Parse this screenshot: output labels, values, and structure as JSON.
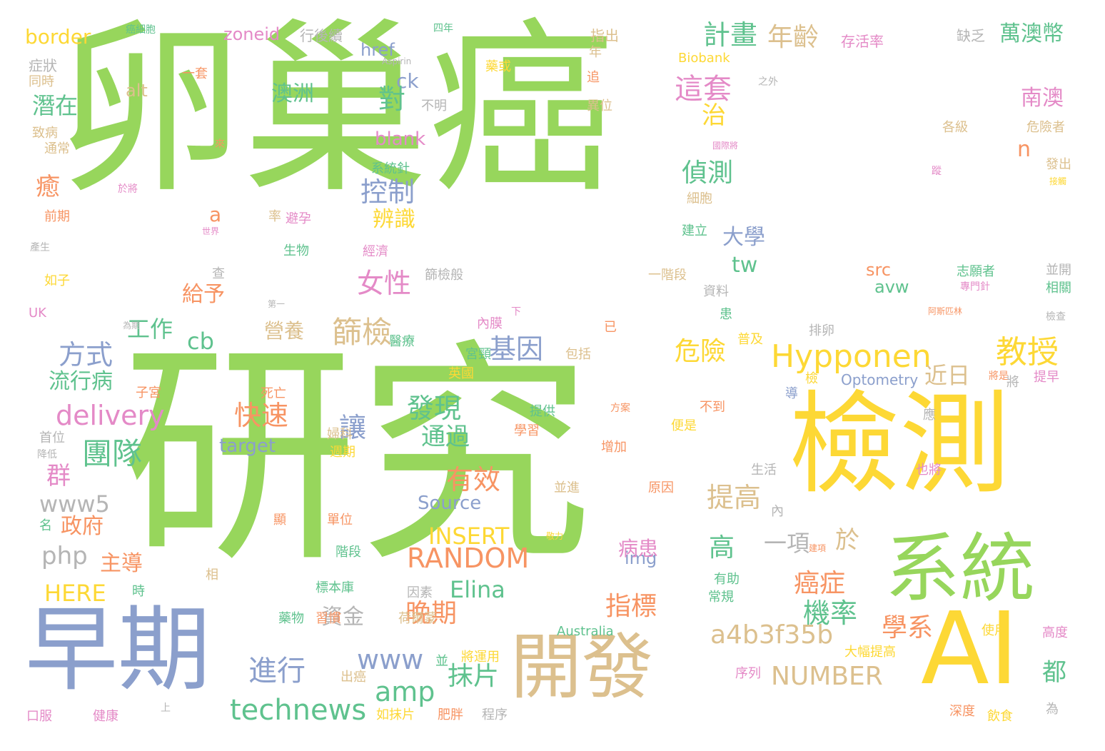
{
  "palette": {
    "green": "#97d65c",
    "yellow": "#fdd835",
    "tan": "#dcc08e",
    "slate": "#8b9fcc",
    "orange": "#f79463",
    "teal": "#5fc28e",
    "pink": "#e48ac7",
    "grey": "#b5b5b5"
  },
  "words": [
    {
      "text": "研究"
    },
    {
      "text": "卵巢癌"
    },
    {
      "text": "檢測"
    },
    {
      "text": "AI"
    },
    {
      "text": "系統"
    },
    {
      "text": "早期"
    },
    {
      "text": "開發"
    },
    {
      "text": "Hypponen"
    },
    {
      "text": "教授"
    },
    {
      "text": "technews"
    },
    {
      "text": "delivery"
    },
    {
      "text": "RANDOM"
    },
    {
      "text": "NUMBER"
    },
    {
      "text": "a4b3f35b"
    },
    {
      "text": "INSERT"
    },
    {
      "text": "HERE"
    },
    {
      "text": "www5"
    },
    {
      "text": "amp"
    },
    {
      "text": "www"
    },
    {
      "text": "Elina"
    },
    {
      "text": "Source"
    },
    {
      "text": "php"
    },
    {
      "text": "border"
    },
    {
      "text": "zoneid"
    },
    {
      "text": "href"
    },
    {
      "text": "blank"
    },
    {
      "text": "target"
    },
    {
      "text": "Optometry"
    },
    {
      "text": "Australia"
    },
    {
      "text": "Biobank"
    },
    {
      "text": "Aspirin"
    },
    {
      "text": "UK"
    },
    {
      "text": "cb"
    },
    {
      "text": "ck"
    },
    {
      "text": "alt"
    },
    {
      "text": "src"
    },
    {
      "text": "avw"
    },
    {
      "text": "img"
    },
    {
      "text": "tw"
    },
    {
      "text": "n"
    },
    {
      "text": "a"
    },
    {
      "text": "篩檢"
    },
    {
      "text": "團隊"
    },
    {
      "text": "方式"
    },
    {
      "text": "女性"
    },
    {
      "text": "控制"
    },
    {
      "text": "基因"
    },
    {
      "text": "危險"
    },
    {
      "text": "進行"
    },
    {
      "text": "抹片"
    },
    {
      "text": "晚期"
    },
    {
      "text": "機率"
    },
    {
      "text": "指標"
    },
    {
      "text": "計畫"
    },
    {
      "text": "年齡"
    },
    {
      "text": "這套"
    },
    {
      "text": "萬澳幣"
    },
    {
      "text": "南澳"
    },
    {
      "text": "偵測"
    },
    {
      "text": "發現"
    },
    {
      "text": "快速"
    },
    {
      "text": "有效"
    },
    {
      "text": "通過"
    },
    {
      "text": "提高"
    },
    {
      "text": "癌症"
    },
    {
      "text": "病患"
    },
    {
      "text": "學系"
    },
    {
      "text": "近日"
    },
    {
      "text": "大學"
    },
    {
      "text": "辨識"
    },
    {
      "text": "澳洲"
    },
    {
      "text": "潛在"
    },
    {
      "text": "營養"
    },
    {
      "text": "流行病"
    },
    {
      "text": "工作"
    },
    {
      "text": "給予"
    },
    {
      "text": "政府"
    },
    {
      "text": "主導"
    },
    {
      "text": "資金"
    },
    {
      "text": "一項"
    },
    {
      "text": "讓"
    },
    {
      "text": "對"
    },
    {
      "text": "治"
    },
    {
      "text": "癒"
    },
    {
      "text": "群"
    },
    {
      "text": "高"
    },
    {
      "text": "於"
    },
    {
      "text": "都"
    },
    {
      "text": "存活率"
    },
    {
      "text": "行後續"
    },
    {
      "text": "缺乏"
    },
    {
      "text": "指出"
    },
    {
      "text": "症狀"
    },
    {
      "text": "同時"
    },
    {
      "text": "致病"
    },
    {
      "text": "通常"
    },
    {
      "text": "前期"
    },
    {
      "text": "如子"
    },
    {
      "text": "一套"
    },
    {
      "text": "生物"
    },
    {
      "text": "避孕"
    },
    {
      "text": "經濟"
    },
    {
      "text": "系統針"
    },
    {
      "text": "不明"
    },
    {
      "text": "異位"
    },
    {
      "text": "細胞"
    },
    {
      "text": "建立"
    },
    {
      "text": "一階段"
    },
    {
      "text": "資料"
    },
    {
      "text": "志願者"
    },
    {
      "text": "專門針"
    },
    {
      "text": "相關"
    },
    {
      "text": "並開"
    },
    {
      "text": "危險者"
    },
    {
      "text": "發出"
    },
    {
      "text": "各級"
    },
    {
      "text": "國際將"
    },
    {
      "text": "篩檢般"
    },
    {
      "text": "第一"
    },
    {
      "text": "醫療"
    },
    {
      "text": "內膜"
    },
    {
      "text": "包括"
    },
    {
      "text": "宮頸"
    },
    {
      "text": "英國"
    },
    {
      "text": "子宮"
    },
    {
      "text": "死亡"
    },
    {
      "text": "婦科"
    },
    {
      "text": "週期"
    },
    {
      "text": "首位"
    },
    {
      "text": "降低"
    },
    {
      "text": "學習"
    },
    {
      "text": "提供"
    },
    {
      "text": "方案"
    },
    {
      "text": "便是"
    },
    {
      "text": "不到"
    },
    {
      "text": "增加"
    },
    {
      "text": "普及"
    },
    {
      "text": "排卵"
    },
    {
      "text": "生活"
    },
    {
      "text": "原因"
    },
    {
      "text": "也將"
    },
    {
      "text": "並進"
    },
    {
      "text": "單位"
    },
    {
      "text": "階段"
    },
    {
      "text": "標本庫"
    },
    {
      "text": "因素"
    },
    {
      "text": "藥物"
    },
    {
      "text": "習慣"
    },
    {
      "text": "荷爾蒙"
    },
    {
      "text": "將運用"
    },
    {
      "text": "大幅提高"
    },
    {
      "text": "出癌"
    },
    {
      "text": "序列"
    },
    {
      "text": "如抹片"
    },
    {
      "text": "肥胖"
    },
    {
      "text": "程序"
    },
    {
      "text": "深度"
    },
    {
      "text": "飲食"
    },
    {
      "text": "高度"
    },
    {
      "text": "使用"
    },
    {
      "text": "常規"
    },
    {
      "text": "有助"
    },
    {
      "text": "健康"
    },
    {
      "text": "口服"
    },
    {
      "text": "提早"
    },
    {
      "text": "將是"
    },
    {
      "text": "阿斯匹林"
    },
    {
      "text": "檢查"
    },
    {
      "text": "產生"
    },
    {
      "text": "世界"
    },
    {
      "text": "四年"
    },
    {
      "text": "癌細胞"
    },
    {
      "text": "之外"
    },
    {
      "text": "於將"
    },
    {
      "text": "為期"
    },
    {
      "text": "導"
    },
    {
      "text": "檢"
    },
    {
      "text": "應"
    },
    {
      "text": "將"
    },
    {
      "text": "為"
    },
    {
      "text": "上"
    },
    {
      "text": "名"
    },
    {
      "text": "顯"
    },
    {
      "text": "相"
    },
    {
      "text": "時"
    },
    {
      "text": "查"
    },
    {
      "text": "率"
    },
    {
      "text": "來"
    },
    {
      "text": "年"
    },
    {
      "text": "追"
    },
    {
      "text": "下"
    },
    {
      "text": "已"
    },
    {
      "text": "患"
    },
    {
      "text": "內"
    },
    {
      "text": "並"
    },
    {
      "text": "蹤"
    },
    {
      "text": "藥或"
    },
    {
      "text": "建項"
    },
    {
      "text": "敬力"
    },
    {
      "text": "接觸"
    }
  ]
}
